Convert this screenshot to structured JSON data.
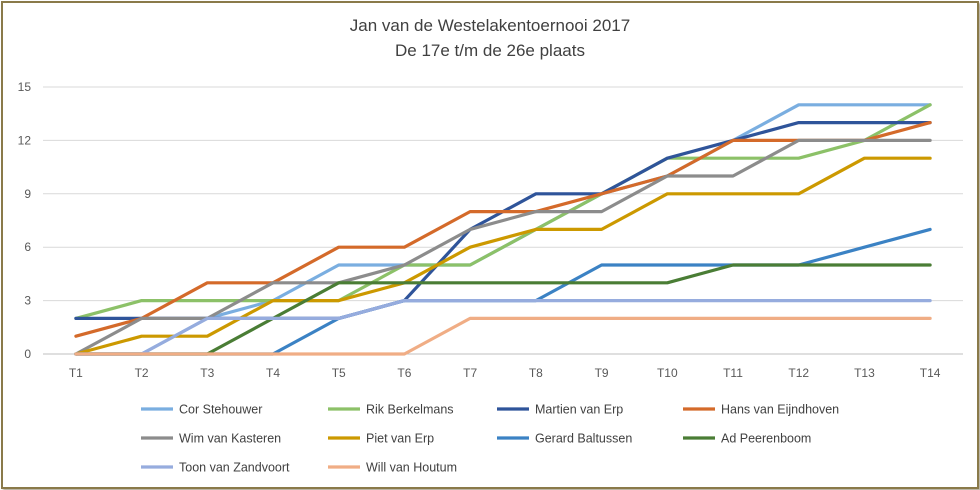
{
  "chart_data": {
    "type": "line",
    "title": "Jan van de Westelakentoernooi 2017",
    "subtitle": "De 17e t/m de 26e plaats",
    "xlabel": "",
    "ylabel": "",
    "categories": [
      "T1",
      "T2",
      "T3",
      "T4",
      "T5",
      "T6",
      "T7",
      "T8",
      "T9",
      "T10",
      "T11",
      "T12",
      "T13",
      "T14"
    ],
    "ylim": [
      0,
      15
    ],
    "yticks": [
      0,
      3,
      6,
      9,
      12,
      15
    ],
    "grid": true,
    "legend": "bottom",
    "series": [
      {
        "name": "Cor Stehouwer",
        "color": "#7aaee0",
        "values": [
          0,
          0,
          2,
          3,
          5,
          5,
          5,
          7,
          9,
          10,
          12,
          14,
          14,
          14
        ]
      },
      {
        "name": "Rik Berkelmans",
        "color": "#8cc168",
        "values": [
          2,
          3,
          3,
          3,
          3,
          5,
          5,
          7,
          9,
          11,
          11,
          11,
          12,
          14
        ]
      },
      {
        "name": "Martien van Erp",
        "color": "#2f549a",
        "values": [
          2,
          2,
          2,
          2,
          2,
          3,
          7,
          9,
          9,
          11,
          12,
          13,
          13,
          13
        ]
      },
      {
        "name": "Hans van Eijndhoven",
        "color": "#d46a2a",
        "values": [
          1,
          2,
          4,
          4,
          6,
          6,
          8,
          8,
          9,
          10,
          12,
          12,
          12,
          13
        ]
      },
      {
        "name": "Wim van Kasteren",
        "color": "#8c8c8c",
        "values": [
          0,
          2,
          2,
          4,
          4,
          5,
          7,
          8,
          8,
          10,
          10,
          12,
          12,
          12
        ]
      },
      {
        "name": "Piet van Erp",
        "color": "#cc9900",
        "values": [
          0,
          1,
          1,
          3,
          3,
          4,
          6,
          7,
          7,
          9,
          9,
          9,
          11,
          11
        ]
      },
      {
        "name": "Gerard Baltussen",
        "color": "#3b82c4",
        "values": [
          0,
          0,
          0,
          0,
          2,
          3,
          3,
          3,
          5,
          5,
          5,
          5,
          6,
          7
        ]
      },
      {
        "name": "Ad Peerenboom",
        "color": "#4a7d35",
        "values": [
          0,
          0,
          0,
          2,
          4,
          4,
          4,
          4,
          4,
          4,
          5,
          5,
          5,
          5
        ]
      },
      {
        "name": "Toon van Zandvoort",
        "color": "#96acde",
        "values": [
          0,
          0,
          2,
          2,
          2,
          3,
          3,
          3,
          3,
          3,
          3,
          3,
          3,
          3
        ]
      },
      {
        "name": "Will van Houtum",
        "color": "#f0ad85",
        "values": [
          0,
          0,
          0,
          0,
          0,
          0,
          2,
          2,
          2,
          2,
          2,
          2,
          2,
          2
        ]
      }
    ]
  }
}
